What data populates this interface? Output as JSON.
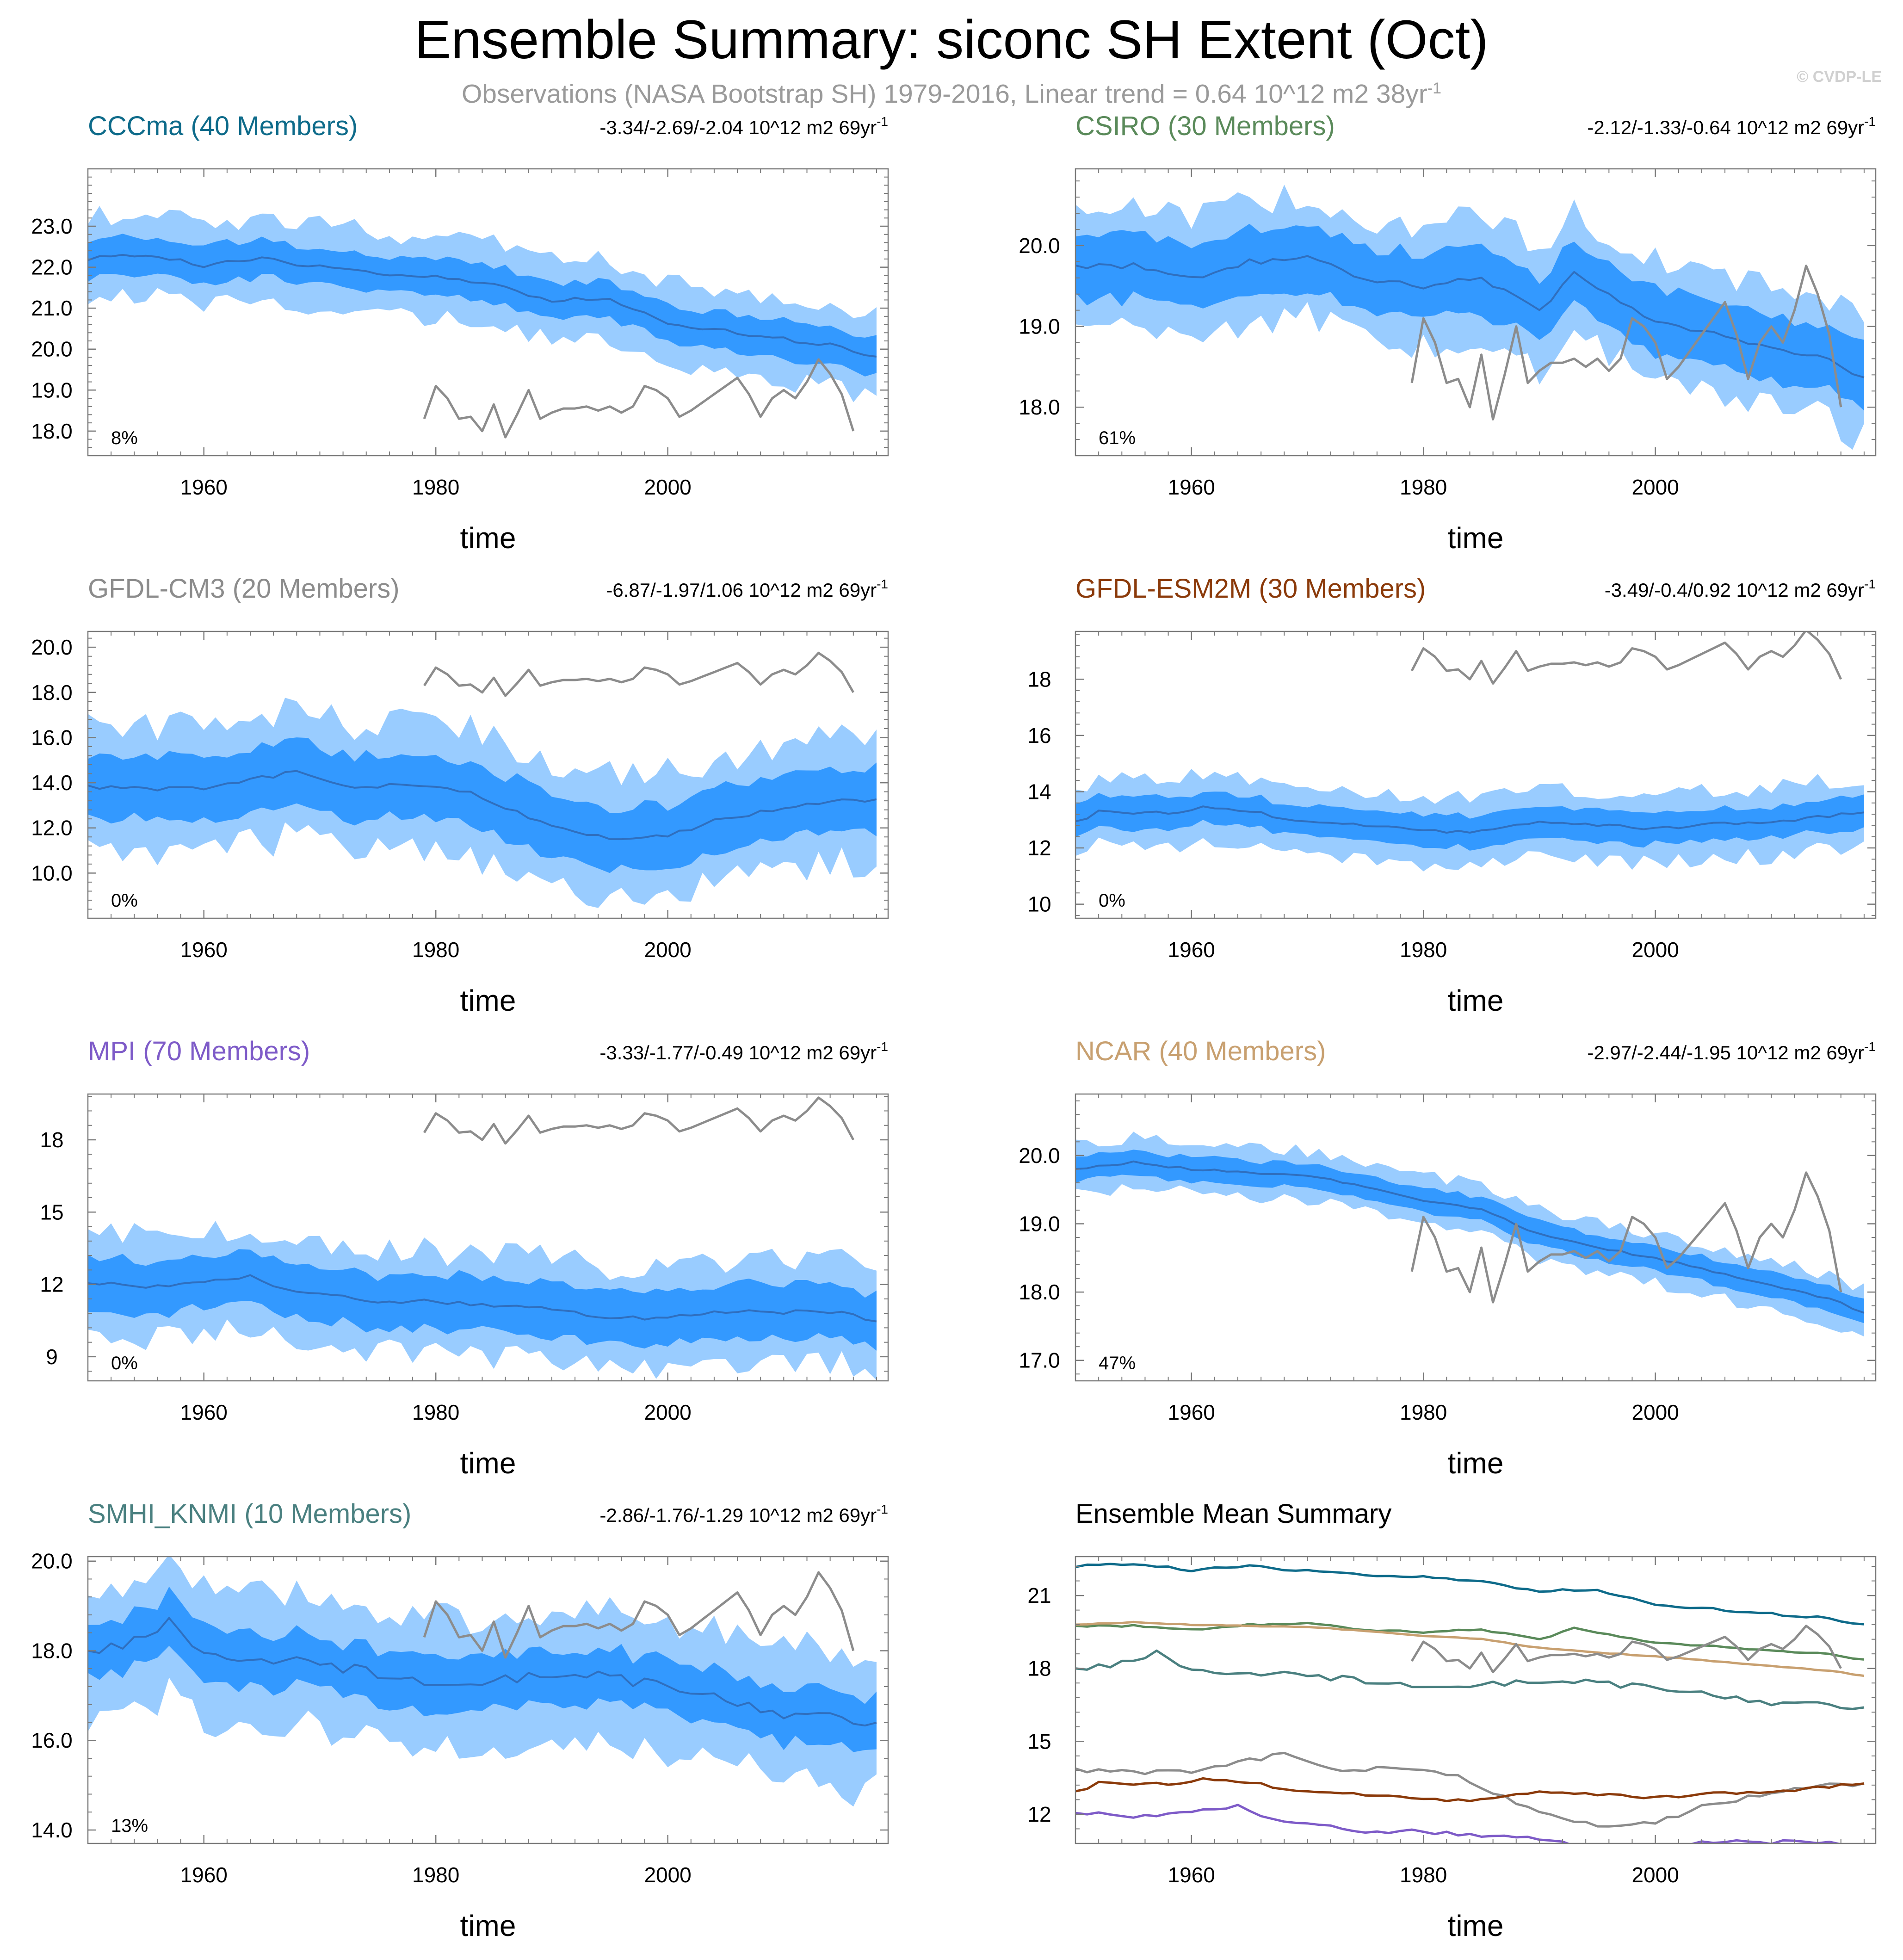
{
  "figure": {
    "title": "Ensemble Summary: siconc SH Extent (Oct)",
    "subtitle_prefix": "Observations (NASA Bootstrap SH) 1979-2016, Linear trend = 0.64 10^12 m2 38yr",
    "subtitle_exponent": "-1",
    "watermark": "© CVDP-LE",
    "colors": {
      "inner_band": "#3399ff",
      "outer_band": "#99ccff",
      "ens_mean": "#2f6fbf",
      "obs": "#8c8c8c",
      "frame": "#7a7a7a"
    }
  },
  "chart_data": [
    {
      "type": "line",
      "id": "CCCma",
      "title": "CCCma (40 Members)",
      "title_color": "#0e6b8a",
      "trend_text": "-3.34/-2.69/-2.04 10^12 m2 69yr",
      "trend_exponent": "-1",
      "percent_label": "8%",
      "xlabel": "time",
      "xlim": [
        1950,
        2019
      ],
      "xticks": [
        1960,
        1980,
        2000
      ],
      "xtick_labels": [
        "1960",
        "1980",
        "2000"
      ],
      "ylim": [
        17.4,
        24.4
      ],
      "yticks": [
        18,
        19,
        20,
        21,
        22,
        23
      ],
      "ytick_labels": [
        "18.0",
        "19.0",
        "20.0",
        "21.0",
        "22.0",
        "23.0"
      ],
      "ens_mean_anchors": [
        [
          1950,
          22.2
        ],
        [
          1955,
          22.3
        ],
        [
          1960,
          22.05
        ],
        [
          1965,
          22.2
        ],
        [
          1970,
          22.0
        ],
        [
          1975,
          21.85
        ],
        [
          1980,
          21.8
        ],
        [
          1985,
          21.55
        ],
        [
          1990,
          21.2
        ],
        [
          1995,
          21.25
        ],
        [
          2000,
          20.6
        ],
        [
          2005,
          20.45
        ],
        [
          2010,
          20.25
        ],
        [
          2015,
          20.05
        ],
        [
          2018,
          19.8
        ]
      ],
      "inner_halfwidth": 0.45,
      "outer_halfwidth": 1.0,
      "wiggle": 0.13,
      "seed": 3,
      "show_obs": true
    },
    {
      "type": "line",
      "id": "CSIRO",
      "title": "CSIRO (30 Members)",
      "title_color": "#5a8a5a",
      "trend_text": "-2.12/-1.33/-0.64 10^12 m2 69yr",
      "trend_exponent": "-1",
      "percent_label": "61%",
      "xlabel": "time",
      "xlim": [
        1950,
        2019
      ],
      "xticks": [
        1960,
        1980,
        2000
      ],
      "xtick_labels": [
        "1960",
        "1980",
        "2000"
      ],
      "ylim": [
        17.4,
        20.95
      ],
      "yticks": [
        18,
        19,
        20
      ],
      "ytick_labels": [
        "18.0",
        "19.0",
        "20.0"
      ],
      "ens_mean_anchors": [
        [
          1950,
          19.75
        ],
        [
          1955,
          19.75
        ],
        [
          1960,
          19.6
        ],
        [
          1965,
          19.8
        ],
        [
          1970,
          19.85
        ],
        [
          1975,
          19.6
        ],
        [
          1980,
          19.5
        ],
        [
          1985,
          19.6
        ],
        [
          1990,
          19.2
        ],
        [
          1993,
          19.65
        ],
        [
          1997,
          19.3
        ],
        [
          2000,
          19.05
        ],
        [
          2005,
          18.9
        ],
        [
          2010,
          18.75
        ],
        [
          2015,
          18.6
        ],
        [
          2018,
          18.35
        ]
      ],
      "inner_halfwidth": 0.4,
      "outer_halfwidth": 0.75,
      "wiggle": 0.09,
      "seed": 7,
      "show_obs": true
    },
    {
      "type": "line",
      "id": "GFDL-CM3",
      "title": "GFDL-CM3 (20 Members)",
      "title_color": "#8c8c8c",
      "trend_text": "-6.87/-1.97/1.06 10^12 m2 69yr",
      "trend_exponent": "-1",
      "percent_label": "0%",
      "xlabel": "time",
      "xlim": [
        1950,
        2019
      ],
      "xticks": [
        1960,
        1980,
        2000
      ],
      "xtick_labels": [
        "1960",
        "1980",
        "2000"
      ],
      "ylim": [
        8.0,
        20.7
      ],
      "yticks": [
        10,
        12,
        14,
        16,
        18,
        20
      ],
      "ytick_labels": [
        "10.0",
        "12.0",
        "14.0",
        "16.0",
        "18.0",
        "20.0"
      ],
      "ens_mean_anchors": [
        [
          1950,
          13.8
        ],
        [
          1955,
          13.75
        ],
        [
          1960,
          13.75
        ],
        [
          1965,
          14.2
        ],
        [
          1968,
          14.5
        ],
        [
          1972,
          13.8
        ],
        [
          1978,
          13.9
        ],
        [
          1983,
          13.6
        ],
        [
          1986,
          12.9
        ],
        [
          1990,
          12.0
        ],
        [
          1995,
          11.5
        ],
        [
          2000,
          11.6
        ],
        [
          2005,
          12.5
        ],
        [
          2010,
          12.8
        ],
        [
          2015,
          13.3
        ],
        [
          2018,
          13.2
        ]
      ],
      "inner_halfwidth": 1.4,
      "outer_halfwidth": 2.8,
      "wiggle": 0.25,
      "seed": 11,
      "show_obs": true
    },
    {
      "type": "line",
      "id": "GFDL-ESM2M",
      "title": "GFDL-ESM2M (30 Members)",
      "title_color": "#8b3a0a",
      "trend_text": "-3.49/-0.4/0.92 10^12 m2 69yr",
      "trend_exponent": "-1",
      "percent_label": "0%",
      "xlabel": "time",
      "xlim": [
        1950,
        2019
      ],
      "xticks": [
        1960,
        1980,
        2000
      ],
      "xtick_labels": [
        "1960",
        "1980",
        "2000"
      ],
      "ylim": [
        9.5,
        19.7
      ],
      "yticks": [
        10,
        12,
        14,
        16,
        18
      ],
      "ytick_labels": [
        "10",
        "12",
        "14",
        "16",
        "18"
      ],
      "ens_mean_anchors": [
        [
          1950,
          12.9
        ],
        [
          1952,
          13.3
        ],
        [
          1955,
          13.2
        ],
        [
          1960,
          13.3
        ],
        [
          1961,
          13.5
        ],
        [
          1965,
          13.3
        ],
        [
          1970,
          12.9
        ],
        [
          1975,
          12.8
        ],
        [
          1980,
          12.6
        ],
        [
          1985,
          12.6
        ],
        [
          1990,
          12.9
        ],
        [
          1995,
          12.8
        ],
        [
          2000,
          12.7
        ],
        [
          2005,
          12.85
        ],
        [
          2010,
          12.9
        ],
        [
          2015,
          13.15
        ],
        [
          2018,
          13.3
        ]
      ],
      "inner_halfwidth": 0.55,
      "outer_halfwidth": 1.2,
      "wiggle": 0.15,
      "seed": 5,
      "show_obs": true
    },
    {
      "type": "line",
      "id": "MPI",
      "title": "MPI (70 Members)",
      "title_color": "#7e5bc8",
      "trend_text": "-3.33/-1.77/-0.49 10^12 m2 69yr",
      "trend_exponent": "-1",
      "percent_label": "0%",
      "xlabel": "time",
      "xlim": [
        1950,
        2019
      ],
      "xticks": [
        1960,
        1980,
        2000
      ],
      "xtick_labels": [
        "1960",
        "1980",
        "2000"
      ],
      "ylim": [
        8.0,
        19.9
      ],
      "yticks": [
        9,
        12,
        15,
        18
      ],
      "ytick_labels": [
        "9",
        "12",
        "15",
        "18"
      ],
      "ens_mean_anchors": [
        [
          1950,
          12.1
        ],
        [
          1955,
          11.9
        ],
        [
          1960,
          12.1
        ],
        [
          1964,
          12.3
        ],
        [
          1968,
          11.7
        ],
        [
          1975,
          11.3
        ],
        [
          1980,
          11.3
        ],
        [
          1985,
          11.1
        ],
        [
          1990,
          11.0
        ],
        [
          1995,
          10.6
        ],
        [
          2000,
          10.6
        ],
        [
          2005,
          10.9
        ],
        [
          2010,
          10.85
        ],
        [
          2015,
          10.8
        ],
        [
          2018,
          10.5
        ]
      ],
      "inner_halfwidth": 1.1,
      "outer_halfwidth": 2.1,
      "wiggle": 0.22,
      "seed": 9,
      "show_obs": true
    },
    {
      "type": "line",
      "id": "NCAR",
      "title": "NCAR (40 Members)",
      "title_color": "#c8a070",
      "trend_text": "-2.97/-2.44/-1.95 10^12 m2 69yr",
      "trend_exponent": "-1",
      "percent_label": "47%",
      "xlabel": "time",
      "xlim": [
        1950,
        2019
      ],
      "xticks": [
        1960,
        1980,
        2000
      ],
      "xtick_labels": [
        "1960",
        "1980",
        "2000"
      ],
      "ylim": [
        16.7,
        20.9
      ],
      "yticks": [
        17,
        18,
        19,
        20
      ],
      "ytick_labels": [
        "17.0",
        "18.0",
        "19.0",
        "20.0"
      ],
      "ens_mean_anchors": [
        [
          1950,
          19.8
        ],
        [
          1955,
          19.9
        ],
        [
          1960,
          19.8
        ],
        [
          1965,
          19.75
        ],
        [
          1970,
          19.7
        ],
        [
          1975,
          19.55
        ],
        [
          1980,
          19.35
        ],
        [
          1985,
          19.2
        ],
        [
          1990,
          18.85
        ],
        [
          1995,
          18.65
        ],
        [
          2000,
          18.5
        ],
        [
          2005,
          18.3
        ],
        [
          2010,
          18.1
        ],
        [
          2015,
          17.9
        ],
        [
          2018,
          17.7
        ]
      ],
      "inner_halfwidth": 0.18,
      "outer_halfwidth": 0.36,
      "wiggle": 0.04,
      "seed": 13,
      "show_obs": true
    },
    {
      "type": "line",
      "id": "SMHI_KNMI",
      "title": "SMHI_KNMI (10 Members)",
      "title_color": "#4a8080",
      "trend_text": "-2.86/-1.76/-1.29 10^12 m2 69yr",
      "trend_exponent": "-1",
      "percent_label": "13%",
      "xlabel": "time",
      "xlim": [
        1950,
        2019
      ],
      "xticks": [
        1960,
        1980,
        2000
      ],
      "xtick_labels": [
        "1960",
        "1980",
        "2000"
      ],
      "ylim": [
        13.7,
        20.1
      ],
      "yticks": [
        14,
        16,
        18,
        20
      ],
      "ytick_labels": [
        "14.0",
        "16.0",
        "18.0",
        "20.0"
      ],
      "ens_mean_anchors": [
        [
          1950,
          17.9
        ],
        [
          1955,
          18.3
        ],
        [
          1957,
          18.7
        ],
        [
          1960,
          17.9
        ],
        [
          1965,
          17.8
        ],
        [
          1970,
          17.7
        ],
        [
          1975,
          17.5
        ],
        [
          1980,
          17.2
        ],
        [
          1985,
          17.3
        ],
        [
          1990,
          17.5
        ],
        [
          1995,
          17.4
        ],
        [
          2000,
          17.2
        ],
        [
          2005,
          16.9
        ],
        [
          2010,
          16.6
        ],
        [
          2015,
          16.5
        ],
        [
          2018,
          16.4
        ]
      ],
      "inner_halfwidth": 0.6,
      "outer_halfwidth": 1.5,
      "wiggle": 0.3,
      "seed": 17,
      "show_obs": true
    },
    {
      "type": "line",
      "id": "summary",
      "title": "Ensemble Mean Summary",
      "title_color": "#000000",
      "xlabel": "time",
      "xlim": [
        1950,
        2019
      ],
      "xticks": [
        1960,
        1980,
        2000
      ],
      "xtick_labels": [
        "1960",
        "1980",
        "2000"
      ],
      "ylim": [
        10.8,
        22.6
      ],
      "yticks": [
        12,
        15,
        18,
        21
      ],
      "ytick_labels": [
        "12",
        "15",
        "18",
        "21"
      ],
      "series": [
        {
          "name": "CCCma",
          "color": "#0e6b8a",
          "ref": "CCCma"
        },
        {
          "name": "CSIRO",
          "color": "#5a8a5a",
          "ref": "CSIRO"
        },
        {
          "name": "GFDL-CM3",
          "color": "#8c8c8c",
          "ref": "GFDL-CM3"
        },
        {
          "name": "GFDL-ESM2M",
          "color": "#8b3a0a",
          "ref": "GFDL-ESM2M"
        },
        {
          "name": "MPI",
          "color": "#7e5bc8",
          "ref": "MPI"
        },
        {
          "name": "NCAR",
          "color": "#c8a070",
          "ref": "NCAR"
        },
        {
          "name": "SMHI_KNMI",
          "color": "#4a8080",
          "ref": "SMHI_KNMI"
        }
      ],
      "show_obs": true
    }
  ],
  "observations": {
    "name": "NASA Bootstrap SH",
    "years": [
      1979,
      1980,
      1981,
      1982,
      1983,
      1984,
      1985,
      1986,
      1987,
      1988,
      1989,
      1990,
      1991,
      1992,
      1993,
      1994,
      1995,
      1996,
      1997,
      1998,
      1999,
      2000,
      2001,
      2002,
      2003,
      2004,
      2005,
      2006,
      2007,
      2008,
      2009,
      2010,
      2011,
      2012,
      2013,
      2014,
      2015,
      2016
    ],
    "values": [
      18.3,
      19.1,
      18.8,
      18.3,
      18.35,
      18.0,
      18.65,
      17.85,
      18.4,
      19.0,
      18.3,
      18.45,
      18.55,
      18.55,
      18.6,
      18.5,
      18.6,
      18.45,
      18.6,
      19.1,
      19.0,
      18.8,
      18.35,
      18.5,
      18.7,
      18.9,
      19.1,
      19.3,
      18.9,
      18.35,
      18.8,
      19.0,
      18.8,
      19.2,
      19.75,
      19.4,
      18.9,
      18.0
    ]
  }
}
